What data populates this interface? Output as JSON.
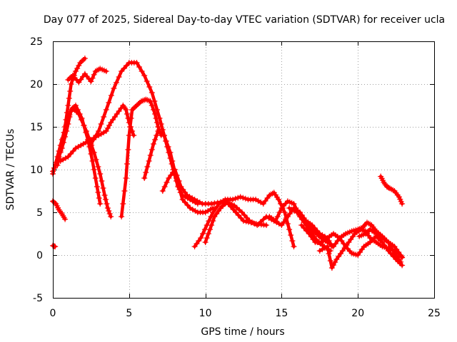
{
  "chart_data": {
    "type": "scatter",
    "title": "Day 077 of 2025, Sidereal Day-to-day VTEC variation (SDTVAR) for receiver ucla",
    "xlabel": "GPS time / hours",
    "ylabel": "SDTVAR / TECUs",
    "xlim": [
      0,
      25
    ],
    "ylim": [
      -5,
      25
    ],
    "xticks": [
      0,
      5,
      10,
      15,
      20,
      25
    ],
    "yticks": [
      -5,
      0,
      5,
      10,
      15,
      20,
      25
    ],
    "grid": true,
    "marker": "+",
    "color": "#ff0000",
    "series": [
      {
        "name": "trace-01",
        "points": [
          [
            0.0,
            1.1
          ],
          [
            0.15,
            1.0
          ]
        ]
      },
      {
        "name": "trace-02",
        "points": [
          [
            0.0,
            6.3
          ],
          [
            0.2,
            6.0
          ],
          [
            0.4,
            5.3
          ],
          [
            0.6,
            4.8
          ],
          [
            0.8,
            4.2
          ]
        ]
      },
      {
        "name": "trace-03",
        "points": [
          [
            0.0,
            9.5
          ],
          [
            0.3,
            11.5
          ],
          [
            0.6,
            13.5
          ],
          [
            1.0,
            16.0
          ],
          [
            1.3,
            17.2
          ],
          [
            1.7,
            16.5
          ],
          [
            2.2,
            14.5
          ],
          [
            2.7,
            12.0
          ],
          [
            3.1,
            9.5
          ],
          [
            3.4,
            7.0
          ],
          [
            3.6,
            5.5
          ],
          [
            3.8,
            4.5
          ]
        ]
      },
      {
        "name": "trace-04",
        "points": [
          [
            0.0,
            9.8
          ],
          [
            0.3,
            11.0
          ],
          [
            0.6,
            12.5
          ],
          [
            0.9,
            14.5
          ],
          [
            1.2,
            17.0
          ],
          [
            1.5,
            17.5
          ],
          [
            1.9,
            16.0
          ],
          [
            2.3,
            13.5
          ],
          [
            2.6,
            11.0
          ],
          [
            2.9,
            8.0
          ],
          [
            3.1,
            6.0
          ]
        ]
      },
      {
        "name": "trace-05",
        "points": [
          [
            0.3,
            10.5
          ],
          [
            0.6,
            13.0
          ],
          [
            0.8,
            15.0
          ],
          [
            1.0,
            17.5
          ],
          [
            1.2,
            20.0
          ],
          [
            1.5,
            21.5
          ],
          [
            1.8,
            22.5
          ],
          [
            2.1,
            23.0
          ]
        ]
      },
      {
        "name": "trace-06",
        "points": [
          [
            1.0,
            20.5
          ],
          [
            1.3,
            21.0
          ],
          [
            1.7,
            20.2
          ],
          [
            2.1,
            21.2
          ],
          [
            2.5,
            20.3
          ],
          [
            2.8,
            21.5
          ],
          [
            3.1,
            21.8
          ],
          [
            3.5,
            21.5
          ]
        ]
      },
      {
        "name": "trace-07",
        "points": [
          [
            0.5,
            11.0
          ],
          [
            1.0,
            11.5
          ],
          [
            1.5,
            12.5
          ],
          [
            2.0,
            13.0
          ],
          [
            2.5,
            13.5
          ],
          [
            3.0,
            14.0
          ],
          [
            3.5,
            14.5
          ],
          [
            3.8,
            15.5
          ],
          [
            4.2,
            16.5
          ],
          [
            4.6,
            17.5
          ],
          [
            4.8,
            17.0
          ],
          [
            5.0,
            15.5
          ],
          [
            5.3,
            14.0
          ]
        ]
      },
      {
        "name": "trace-08",
        "points": [
          [
            4.5,
            4.5
          ],
          [
            4.8,
            9.0
          ],
          [
            5.0,
            14.0
          ],
          [
            5.2,
            17.0
          ],
          [
            5.5,
            17.5
          ],
          [
            5.8,
            18.0
          ],
          [
            6.1,
            18.2
          ],
          [
            6.4,
            18.0
          ],
          [
            6.7,
            16.5
          ],
          [
            6.9,
            15.0
          ],
          [
            7.1,
            14.0
          ]
        ]
      },
      {
        "name": "trace-09",
        "points": [
          [
            2.5,
            13.0
          ],
          [
            3.0,
            14.5
          ],
          [
            3.5,
            17.0
          ],
          [
            4.0,
            19.5
          ],
          [
            4.5,
            21.5
          ],
          [
            5.0,
            22.5
          ],
          [
            5.5,
            22.5
          ],
          [
            6.0,
            21.0
          ],
          [
            6.5,
            19.0
          ],
          [
            7.0,
            16.0
          ],
          [
            7.3,
            14.0
          ],
          [
            7.6,
            12.0
          ],
          [
            7.9,
            10.0
          ],
          [
            8.2,
            8.0
          ],
          [
            8.5,
            7.0
          ],
          [
            9.0,
            6.5
          ],
          [
            9.5,
            6.0
          ]
        ]
      },
      {
        "name": "trace-10",
        "points": [
          [
            6.0,
            9.0
          ],
          [
            6.3,
            11.0
          ],
          [
            6.6,
            13.0
          ],
          [
            6.9,
            14.5
          ],
          [
            7.3,
            14.0
          ],
          [
            7.7,
            12.0
          ],
          [
            8.1,
            9.0
          ],
          [
            8.5,
            6.5
          ],
          [
            9.0,
            5.5
          ],
          [
            9.5,
            5.0
          ],
          [
            10.0,
            5.0
          ],
          [
            10.5,
            5.5
          ]
        ]
      },
      {
        "name": "trace-11",
        "points": [
          [
            7.2,
            7.5
          ],
          [
            7.6,
            9.0
          ],
          [
            8.0,
            10.0
          ],
          [
            8.4,
            8.0
          ],
          [
            8.8,
            7.0
          ],
          [
            9.3,
            6.5
          ],
          [
            9.8,
            6.0
          ],
          [
            10.4,
            6.0
          ],
          [
            11.0,
            6.2
          ],
          [
            11.5,
            6.0
          ],
          [
            12.0,
            5.0
          ],
          [
            12.5,
            4.0
          ],
          [
            13.0,
            3.8
          ],
          [
            13.5,
            3.6
          ],
          [
            14.0,
            3.5
          ]
        ]
      },
      {
        "name": "trace-12",
        "points": [
          [
            9.3,
            1.0
          ],
          [
            9.7,
            2.0
          ],
          [
            10.1,
            3.5
          ],
          [
            10.5,
            5.0
          ],
          [
            10.9,
            6.0
          ],
          [
            11.3,
            6.5
          ],
          [
            11.8,
            6.5
          ],
          [
            12.3,
            6.8
          ],
          [
            12.8,
            6.5
          ],
          [
            13.3,
            6.5
          ],
          [
            13.8,
            6.0
          ],
          [
            14.2,
            7.0
          ],
          [
            14.5,
            7.3
          ],
          [
            14.8,
            6.5
          ],
          [
            15.2,
            5.0
          ],
          [
            15.5,
            3.0
          ],
          [
            15.8,
            1.0
          ]
        ]
      },
      {
        "name": "trace-13",
        "points": [
          [
            10.0,
            1.5
          ],
          [
            10.3,
            3.0
          ],
          [
            10.6,
            4.5
          ],
          [
            11.0,
            5.5
          ],
          [
            11.4,
            6.2
          ],
          [
            11.9,
            5.8
          ],
          [
            12.4,
            5.0
          ],
          [
            12.9,
            4.0
          ],
          [
            13.4,
            3.5
          ],
          [
            14.0,
            4.5
          ],
          [
            14.5,
            4.0
          ],
          [
            15.0,
            3.5
          ],
          [
            15.4,
            4.5
          ],
          [
            15.8,
            5.5
          ],
          [
            16.2,
            5.0
          ],
          [
            16.6,
            4.0
          ],
          [
            17.0,
            3.5
          ],
          [
            17.5,
            2.5
          ],
          [
            18.0,
            2.0
          ],
          [
            18.3,
            1.0
          ]
        ]
      },
      {
        "name": "trace-14",
        "points": [
          [
            14.2,
            4.5
          ],
          [
            14.6,
            4.0
          ],
          [
            15.0,
            5.5
          ],
          [
            15.4,
            6.3
          ],
          [
            15.8,
            6.0
          ],
          [
            16.2,
            4.5
          ],
          [
            16.6,
            3.5
          ],
          [
            17.0,
            2.5
          ],
          [
            17.4,
            1.5
          ],
          [
            17.8,
            1.0
          ],
          [
            18.2,
            0.5
          ]
        ]
      },
      {
        "name": "trace-15",
        "points": [
          [
            15.5,
            5.5
          ],
          [
            16.0,
            5.0
          ],
          [
            16.5,
            4.0
          ],
          [
            17.0,
            3.0
          ],
          [
            17.3,
            2.5
          ],
          [
            17.6,
            2.0
          ],
          [
            18.0,
            1.5
          ],
          [
            18.4,
            1.0
          ],
          [
            18.8,
            2.0
          ],
          [
            19.2,
            1.0
          ],
          [
            19.6,
            0.2
          ],
          [
            20.0,
            0.0
          ],
          [
            20.4,
            1.0
          ],
          [
            20.8,
            1.5
          ],
          [
            21.2,
            2.2
          ],
          [
            21.6,
            1.5
          ],
          [
            22.0,
            0.5
          ],
          [
            22.5,
            -0.5
          ],
          [
            22.9,
            -1.2
          ]
        ]
      },
      {
        "name": "trace-16",
        "points": [
          [
            16.3,
            3.5
          ],
          [
            16.8,
            2.5
          ],
          [
            17.2,
            1.5
          ],
          [
            17.6,
            1.5
          ],
          [
            18.0,
            2.0
          ],
          [
            18.4,
            2.5
          ],
          [
            18.8,
            2.0
          ],
          [
            19.2,
            2.5
          ],
          [
            19.6,
            2.8
          ],
          [
            20.0,
            3.0
          ],
          [
            20.3,
            3.2
          ],
          [
            20.6,
            3.8
          ],
          [
            20.9,
            3.5
          ],
          [
            21.2,
            2.8
          ],
          [
            21.6,
            2.2
          ],
          [
            22.0,
            1.5
          ],
          [
            22.4,
            0.2
          ],
          [
            22.8,
            -0.8
          ]
        ]
      },
      {
        "name": "trace-17",
        "points": [
          [
            17.5,
            0.5
          ],
          [
            18.0,
            1.0
          ],
          [
            18.3,
            -1.5
          ],
          [
            18.6,
            -0.5
          ],
          [
            19.0,
            0.5
          ],
          [
            19.4,
            1.5
          ],
          [
            19.8,
            2.5
          ],
          [
            20.2,
            3.0
          ],
          [
            20.5,
            2.8
          ],
          [
            20.8,
            2.0
          ],
          [
            21.2,
            1.5
          ],
          [
            21.6,
            1.0
          ],
          [
            22.0,
            0.8
          ],
          [
            22.4,
            0.5
          ],
          [
            22.8,
            0.0
          ]
        ]
      },
      {
        "name": "trace-18",
        "points": [
          [
            20.1,
            2.2
          ],
          [
            20.5,
            2.5
          ],
          [
            20.8,
            3.0
          ],
          [
            21.2,
            2.5
          ],
          [
            21.6,
            2.0
          ],
          [
            22.0,
            1.5
          ],
          [
            22.4,
            1.0
          ],
          [
            22.8,
            0.0
          ],
          [
            22.9,
            -0.3
          ]
        ]
      },
      {
        "name": "trace-19",
        "points": [
          [
            21.5,
            9.2
          ],
          [
            21.7,
            8.5
          ],
          [
            21.9,
            8.0
          ],
          [
            22.1,
            7.8
          ],
          [
            22.4,
            7.5
          ],
          [
            22.7,
            6.8
          ],
          [
            22.9,
            6.0
          ]
        ]
      }
    ]
  }
}
